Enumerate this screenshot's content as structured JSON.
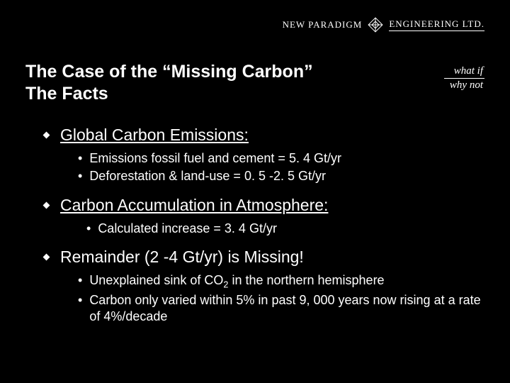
{
  "brand": {
    "left": "NEW PARADIGM",
    "right": "ENGINEERING LTD.",
    "tagline1": "what if",
    "tagline2": "why not"
  },
  "title": {
    "line1": "The Case of the “Missing Carbon”",
    "line2": "The Facts"
  },
  "sections": [
    {
      "heading": "Global Carbon Emissions:",
      "underline": true,
      "items": [
        {
          "text": "Emissions fossil fuel and cement = 5. 4 Gt/yr",
          "indent": false
        },
        {
          "text": "Deforestation & land-use = 0. 5 -2. 5 Gt/yr",
          "indent": false
        }
      ]
    },
    {
      "heading": "Carbon Accumulation in Atmosphere:",
      "underline": true,
      "items": [
        {
          "text": "Calculated increase = 3. 4 Gt/yr",
          "indent": true
        }
      ]
    },
    {
      "heading": "Remainder (2 -4 Gt/yr) is Missing!",
      "underline": false,
      "items": [
        {
          "html": "Unexplained sink of CO<sub>2</sub> in the northern hemisphere",
          "indent": false
        },
        {
          "text": "Carbon only varied within 5% in past 9, 000 years now rising at a rate of 4%/decade",
          "indent": false
        }
      ]
    }
  ],
  "colors": {
    "background": "#000000",
    "text": "#ffffff"
  }
}
